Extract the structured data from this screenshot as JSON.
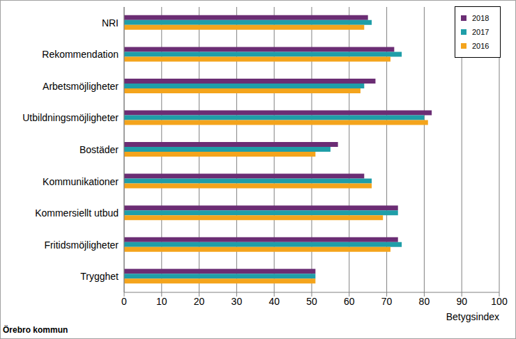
{
  "chart_data": {
    "type": "bar",
    "orientation": "horizontal",
    "categories": [
      "NRI",
      "Rekommendation",
      "Arbetsmöjligheter",
      "Utbildningsmöjligheter",
      "Bostäder",
      "Kommunikationer",
      "Kommersiellt utbud",
      "Fritidsmöjligheter",
      "Trygghet"
    ],
    "series": [
      {
        "name": "2018",
        "color": "#6b2d74",
        "values": [
          65,
          72,
          67,
          82,
          57,
          64,
          73,
          73,
          51
        ]
      },
      {
        "name": "2017",
        "color": "#1f9ea8",
        "values": [
          66,
          74,
          64,
          80,
          55,
          66,
          73,
          74,
          51
        ]
      },
      {
        "name": "2016",
        "color": "#f4a41c",
        "values": [
          64,
          71,
          63,
          81,
          51,
          66,
          69,
          71,
          51
        ]
      }
    ],
    "x_label": "Betygsindex",
    "xlim": [
      0,
      100
    ],
    "xticks": [
      0,
      10,
      20,
      30,
      40,
      50,
      60,
      70,
      80,
      90,
      100
    ],
    "grid": true,
    "legend": "upper right",
    "annotation": "Örebro kommun"
  }
}
